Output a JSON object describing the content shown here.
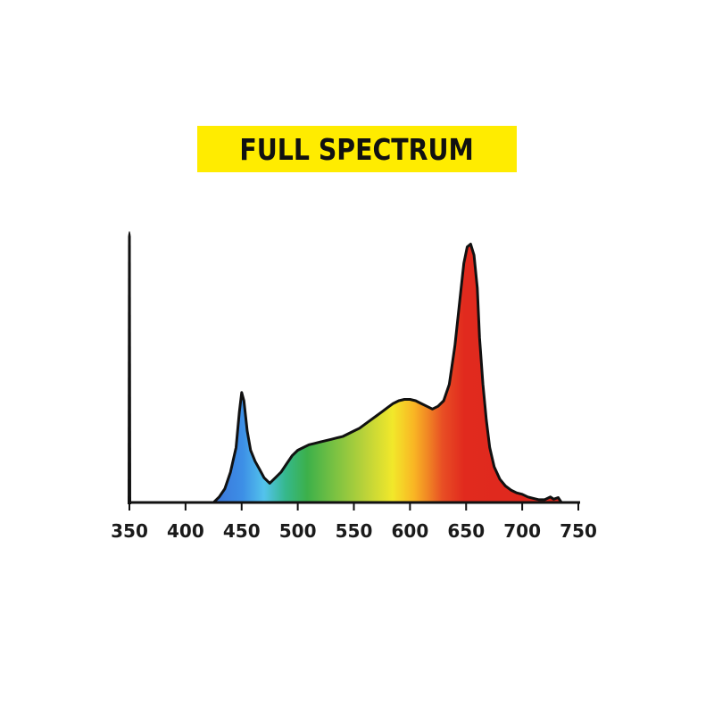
{
  "title": "FULL SPECTRUM",
  "colors": {
    "banner": "#ffec00",
    "axis": "#111111"
  },
  "chart_data": {
    "type": "area",
    "title": "FULL SPECTRUM",
    "xlabel": "",
    "ylabel": "",
    "xlim": [
      350,
      750
    ],
    "ylim": [
      0,
      1
    ],
    "grid": false,
    "legend": "none",
    "fill": "visible-spectrum color gradient",
    "x_ticks": [
      350,
      400,
      450,
      500,
      550,
      600,
      650,
      700,
      750
    ],
    "series": [
      {
        "x": [
          425,
          430,
          435,
          440,
          445,
          448,
          450,
          452,
          455,
          458,
          462,
          466,
          470,
          475,
          480,
          485,
          490,
          495,
          500,
          505,
          510,
          515,
          520,
          525,
          530,
          535,
          540,
          545,
          550,
          555,
          560,
          565,
          570,
          575,
          580,
          585,
          590,
          595,
          600,
          605,
          610,
          615,
          620,
          625,
          630,
          635,
          640,
          645,
          648,
          651,
          654,
          657,
          660,
          662,
          665,
          668,
          671,
          675,
          680,
          685,
          690,
          695,
          700,
          705,
          710,
          715,
          720,
          725,
          728,
          732,
          735
        ],
        "y": [
          0.0,
          0.02,
          0.05,
          0.11,
          0.2,
          0.33,
          0.4,
          0.37,
          0.26,
          0.19,
          0.15,
          0.12,
          0.09,
          0.07,
          0.09,
          0.11,
          0.14,
          0.17,
          0.19,
          0.2,
          0.21,
          0.215,
          0.22,
          0.225,
          0.23,
          0.235,
          0.24,
          0.25,
          0.26,
          0.27,
          0.285,
          0.3,
          0.315,
          0.33,
          0.345,
          0.36,
          0.37,
          0.375,
          0.375,
          0.37,
          0.36,
          0.35,
          0.34,
          0.35,
          0.37,
          0.43,
          0.57,
          0.76,
          0.87,
          0.93,
          0.94,
          0.9,
          0.78,
          0.6,
          0.43,
          0.3,
          0.2,
          0.13,
          0.085,
          0.06,
          0.045,
          0.035,
          0.03,
          0.02,
          0.015,
          0.01,
          0.01,
          0.02,
          0.012,
          0.018,
          0.0
        ]
      }
    ]
  }
}
